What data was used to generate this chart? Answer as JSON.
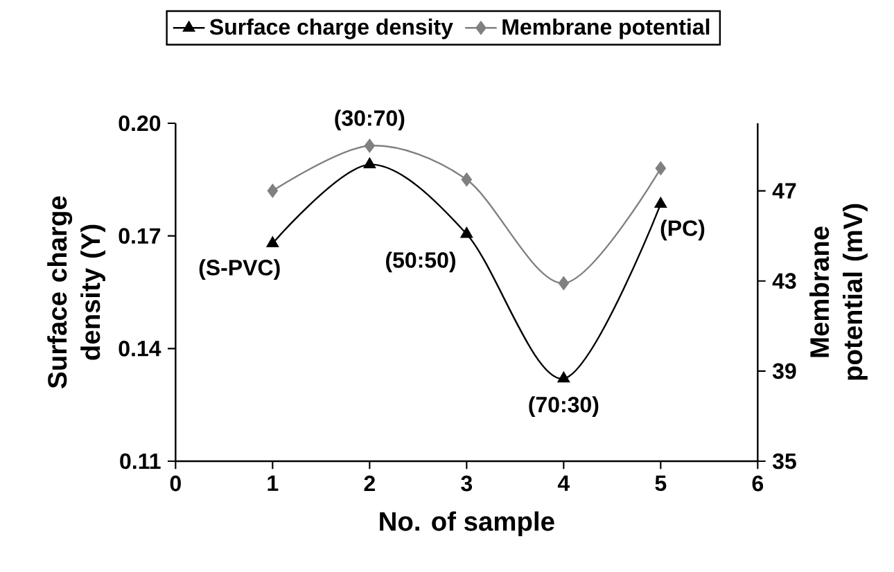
{
  "chart_data": {
    "type": "line",
    "xlabel": "No. of sample",
    "ylabel": "Surface charge density (Y)",
    "y2label": "Membrane potential (mV)",
    "x": [
      1,
      2,
      3,
      4,
      5
    ],
    "series": [
      {
        "name": "Surface charge density",
        "color": "#000000",
        "marker": "triangle",
        "values": [
          0.168,
          0.189,
          0.1705,
          0.132,
          0.1785
        ]
      },
      {
        "name": "Membrane potential",
        "color": "#808080",
        "marker": "diamond",
        "axis": "y2",
        "values": [
          47.0,
          49.0,
          47.5,
          42.9,
          48.0
        ]
      }
    ],
    "xlim": [
      0,
      6
    ],
    "xticks": [
      0,
      1,
      2,
      3,
      4,
      5,
      6
    ],
    "ylim": [
      0.11,
      0.2
    ],
    "yticks": [
      0.11,
      0.14,
      0.17,
      {
        "value": 0.2,
        "label": "0.20"
      }
    ],
    "y2lim": [
      35,
      50
    ],
    "y2ticks": [
      35,
      39,
      43,
      47
    ],
    "annotations": [
      {
        "text": "(S-PVC)",
        "x": 1,
        "y": 0.168
      },
      {
        "text": "(30:70)",
        "x": 2,
        "y": 0.189
      },
      {
        "text": "(50:50)",
        "x": 3,
        "y": 0.1705
      },
      {
        "text": "(70:30)",
        "x": 4,
        "y": 0.132
      },
      {
        "text": "(PC)",
        "x": 5,
        "y": 0.1785
      }
    ],
    "legend": "top",
    "grid": false
  }
}
